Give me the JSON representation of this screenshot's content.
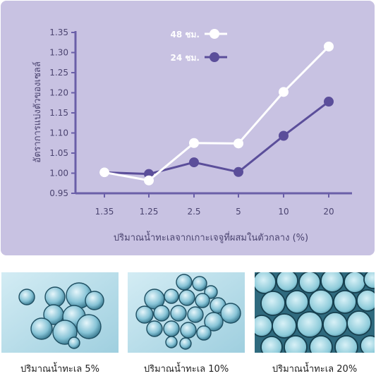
{
  "chart_data": {
    "type": "line",
    "categories": [
      "1.35",
      "1.25",
      "2.5",
      "5",
      "10",
      "20"
    ],
    "series": [
      {
        "name": "48 ชม.",
        "values": [
          1.002,
          0.982,
          1.075,
          1.074,
          1.202,
          1.315
        ],
        "color": "#ffffff"
      },
      {
        "name": "24 ชม.",
        "values": [
          1.002,
          0.998,
          1.027,
          1.003,
          1.093,
          1.178
        ],
        "color": "#5b4e9a"
      }
    ],
    "xlabel": "ปริมาณน้ำทะเลจากเกาะเจจูที่ผสมในตัวกลาง (%)",
    "ylabel": "อัตราการแบ่งตัวของเซลล์",
    "ylim": [
      0.95,
      1.35
    ],
    "yticks": [
      "0.95",
      "1.00",
      "1.05",
      "1.10",
      "1.15",
      "1.20",
      "1.25",
      "1.30",
      "1.35"
    ],
    "legend_position": "top-right",
    "grid": false
  },
  "colors": {
    "panel": "#c8c2e2",
    "axis": "#6a5fa8",
    "photo_bg": "#a9d3e3"
  },
  "images": [
    {
      "caption": "ปริมาณน้ำทะเล 5%"
    },
    {
      "caption": "ปริมาณน้ำทะเล 10%"
    },
    {
      "caption": "ปริมาณน้ำทะเล 20%"
    }
  ]
}
